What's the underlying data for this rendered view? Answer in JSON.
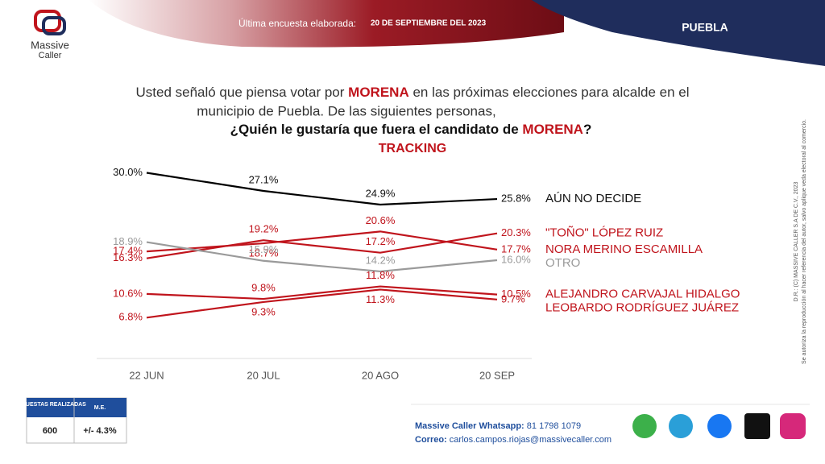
{
  "header": {
    "survey_label": "Última encuesta elaborada:",
    "survey_date": "20 DE SEPTIEMBRE DEL 2023",
    "region": "PUEBLA",
    "logo_1": "Massive",
    "logo_2": "Caller"
  },
  "question": {
    "part_1": "Usted señaló que piensa votar por",
    "party": "MORENA",
    "part_2": "en las próximas elecciones para alcalde en el",
    "part_3": "municipio de Puebla.  De las siguientes personas,",
    "part_4": "¿Quién le gustaría que fuera el candidato de",
    "part_5": "?"
  },
  "chart_data": {
    "type": "line",
    "subtitle": "TRACKING",
    "categories": [
      "22 JUN",
      "20 JUL",
      "20 AGO",
      "20 SEP"
    ],
    "ylim": [
      0,
      32
    ],
    "series": [
      {
        "name": "AÚN NO DECIDE",
        "color": "#000000",
        "values": [
          30.0,
          27.1,
          24.9,
          25.8
        ],
        "value_labels": [
          "30.0%",
          "27.1%",
          "24.9%",
          "25.8%"
        ]
      },
      {
        "name": "\"TOÑO\" LÓPEZ RUIZ",
        "color": "#c0141c",
        "values": [
          16.3,
          19.2,
          17.2,
          20.3
        ],
        "value_labels": [
          "16.3%",
          "19.2%",
          "17.2%",
          "20.3%"
        ]
      },
      {
        "name": "NORA MERINO ESCAMILLA",
        "color": "#c0141c",
        "values": [
          17.4,
          18.7,
          20.6,
          17.7
        ],
        "value_labels": [
          "17.4%",
          "18.7%",
          "20.6%",
          "17.7%"
        ]
      },
      {
        "name": "OTRO",
        "color": "#9a9a9a",
        "values": [
          18.9,
          15.9,
          14.2,
          16.0
        ],
        "value_labels": [
          "18.9%",
          "15.9%",
          "14.2%",
          "16.0%"
        ]
      },
      {
        "name": "ALEJANDRO CARVAJAL HIDALGO",
        "color": "#c0141c",
        "values": [
          10.6,
          9.8,
          11.8,
          10.5
        ],
        "value_labels": [
          "10.6%",
          "9.8%",
          "11.8%",
          "10.5%"
        ]
      },
      {
        "name": "LEOBARDO RODRÍGUEZ JUÁREZ",
        "color": "#c0141c",
        "values": [
          6.8,
          9.3,
          11.3,
          9.7
        ],
        "value_labels": [
          "6.8%",
          "9.3%",
          "11.3%",
          "9.7%"
        ]
      }
    ]
  },
  "table": {
    "headers": [
      "ENCUESTAS REALIZADAS",
      "M.E."
    ],
    "rows": [
      [
        600,
        "+/- 4.3%"
      ]
    ]
  },
  "footer": {
    "whatsapp_label": "Massive Caller Whatsapp:",
    "whatsapp": "81 1798 1079",
    "email_label": "Correo:",
    "email": "carlos.campos.riojas@massivecaller.com",
    "copyright": "D.R.: (C) MASSIVE CALLER S.A DE C.V., 2023",
    "notice": "Se autoriza la reproducción al hacer referencia del autor, salvo aplique veda electoral al comercio."
  }
}
